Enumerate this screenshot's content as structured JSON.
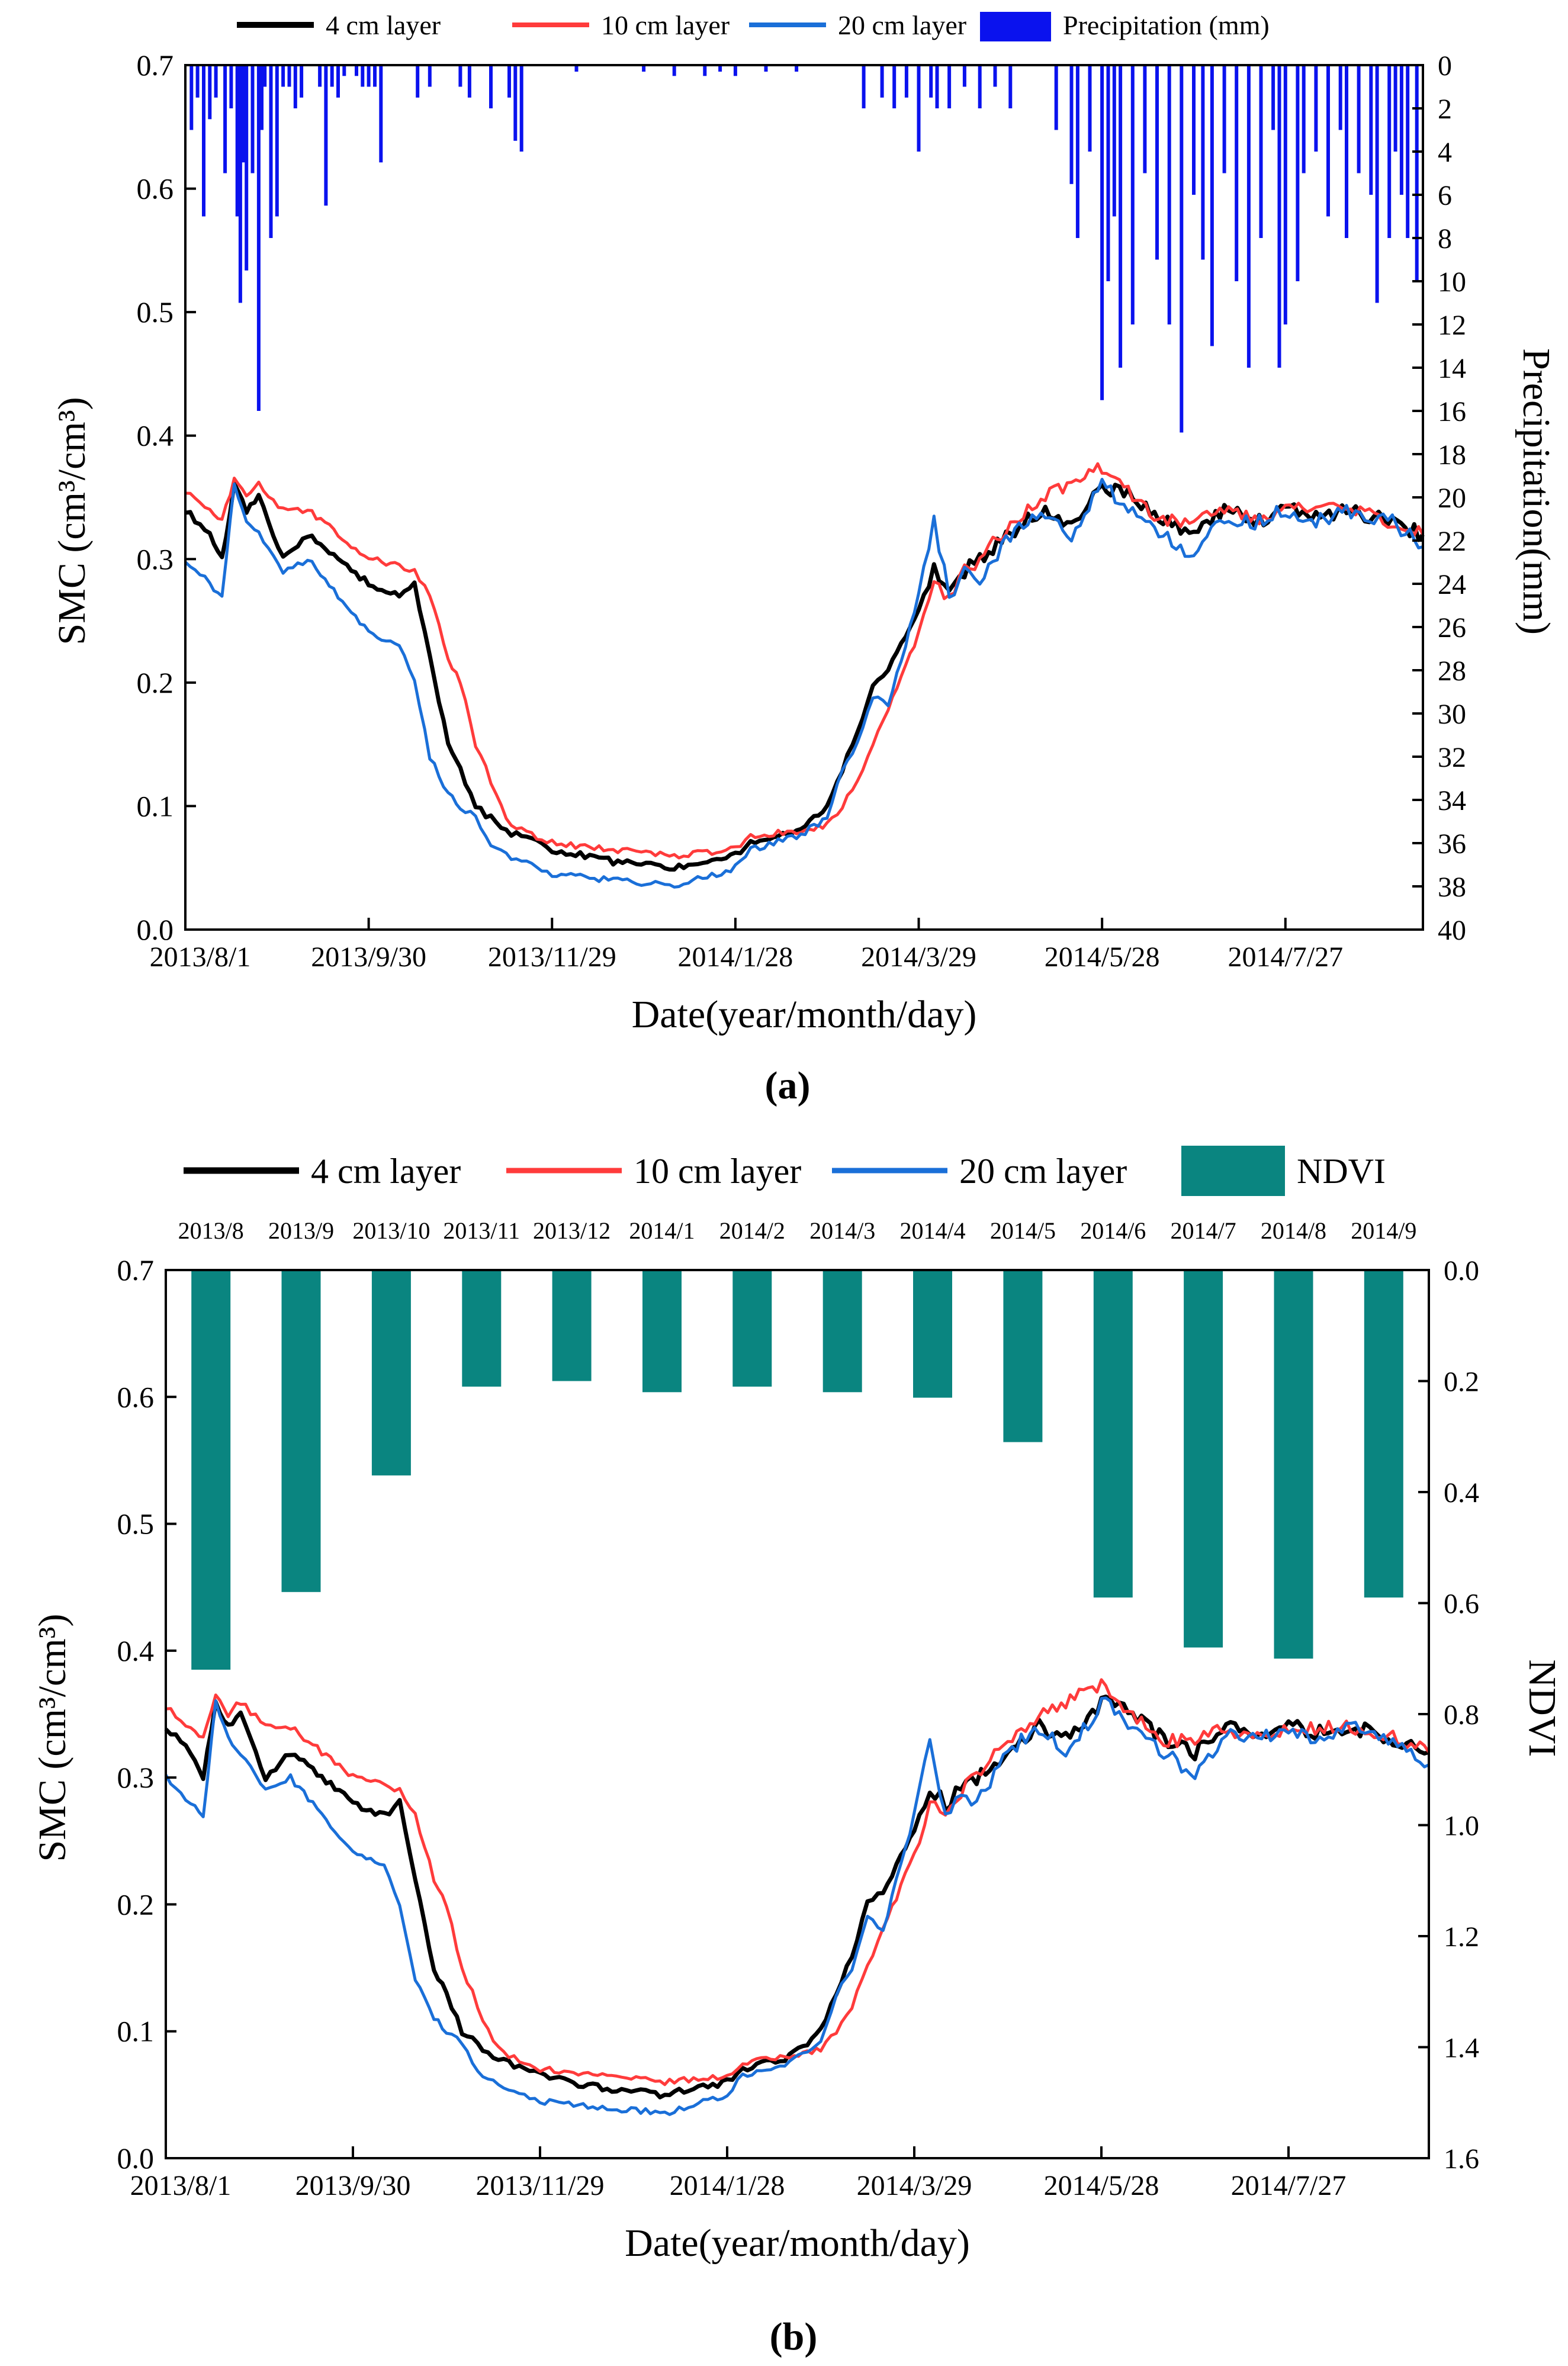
{
  "figure": {
    "panel_a_label": "(a)",
    "panel_b_label": "(b)"
  },
  "colors": {
    "layer4": "#000000",
    "layer10": "#ff3b3b",
    "layer20": "#1a6fd8",
    "precip": "#0a12ee",
    "ndvi": "#0a8580"
  },
  "chart_data": [
    {
      "type": "line",
      "panel": "a",
      "xlabel": "Date(year/month/day)",
      "ylabel": "SMC (cm³/cm³)",
      "y2label": "Precipitation(mm)",
      "ylim": [
        0.0,
        0.7
      ],
      "y2lim": [
        0,
        40
      ],
      "y2_inverted": true,
      "x_tick_labels": [
        "2013/8/1",
        "2013/9/30",
        "2013/11/29",
        "2014/1/28",
        "2014/3/29",
        "2014/5/28",
        "2014/7/27"
      ],
      "y_tick_labels": [
        "0.0",
        "0.1",
        "0.2",
        "0.3",
        "0.4",
        "0.5",
        "0.6",
        "0.7"
      ],
      "y2_tick_labels": [
        "0",
        "2",
        "4",
        "6",
        "8",
        "10",
        "12",
        "14",
        "16",
        "18",
        "20",
        "22",
        "24",
        "26",
        "28",
        "30",
        "32",
        "34",
        "36",
        "38",
        "40"
      ],
      "legend": [
        "4 cm layer",
        "10 cm layer",
        "20 cm layer",
        "Precipitation (mm)"
      ],
      "legend_position": "top",
      "x_days": [
        0,
        8,
        12,
        16,
        20,
        24,
        32,
        40,
        50,
        60,
        70,
        75,
        80,
        86,
        90,
        95,
        100,
        105,
        110,
        115,
        120,
        140,
        160,
        180,
        185,
        200,
        210,
        215,
        220,
        225,
        230,
        240,
        245,
        250,
        255,
        260,
        270,
        280,
        290,
        300,
        310,
        320,
        330,
        340,
        350,
        360,
        370,
        380,
        395,
        405
      ],
      "series": [
        {
          "name": "4 cm layer",
          "values": [
            0.34,
            0.32,
            0.3,
            0.36,
            0.34,
            0.35,
            0.3,
            0.32,
            0.3,
            0.28,
            0.27,
            0.28,
            0.22,
            0.15,
            0.13,
            0.1,
            0.09,
            0.08,
            0.075,
            0.07,
            0.065,
            0.055,
            0.05,
            0.06,
            0.07,
            0.08,
            0.1,
            0.13,
            0.16,
            0.2,
            0.21,
            0.26,
            0.29,
            0.28,
            0.29,
            0.3,
            0.32,
            0.34,
            0.33,
            0.36,
            0.35,
            0.33,
            0.32,
            0.34,
            0.33,
            0.34,
            0.335,
            0.34,
            0.33,
            0.32
          ]
        },
        {
          "name": "10 cm layer",
          "values": [
            0.355,
            0.34,
            0.33,
            0.365,
            0.35,
            0.36,
            0.34,
            0.34,
            0.32,
            0.3,
            0.295,
            0.29,
            0.27,
            0.22,
            0.2,
            0.15,
            0.12,
            0.09,
            0.08,
            0.075,
            0.07,
            0.065,
            0.06,
            0.065,
            0.075,
            0.08,
            0.085,
            0.1,
            0.12,
            0.15,
            0.18,
            0.24,
            0.28,
            0.27,
            0.29,
            0.3,
            0.33,
            0.35,
            0.36,
            0.375,
            0.35,
            0.33,
            0.33,
            0.34,
            0.33,
            0.34,
            0.34,
            0.34,
            0.33,
            0.32
          ]
        },
        {
          "name": "20 cm layer",
          "values": [
            0.3,
            0.28,
            0.27,
            0.36,
            0.33,
            0.32,
            0.29,
            0.3,
            0.27,
            0.24,
            0.23,
            0.2,
            0.14,
            0.11,
            0.1,
            0.09,
            0.07,
            0.06,
            0.055,
            0.05,
            0.045,
            0.04,
            0.035,
            0.05,
            0.065,
            0.075,
            0.09,
            0.13,
            0.15,
            0.19,
            0.18,
            0.27,
            0.33,
            0.27,
            0.29,
            0.28,
            0.32,
            0.34,
            0.32,
            0.36,
            0.34,
            0.32,
            0.3,
            0.335,
            0.33,
            0.34,
            0.33,
            0.34,
            0.33,
            0.31
          ]
        }
      ],
      "precipitation": {
        "name": "Precipitation (mm)",
        "days": [
          2,
          4,
          6,
          8,
          10,
          13,
          15,
          17,
          18,
          19,
          20,
          22,
          24,
          25,
          26,
          28,
          30,
          32,
          34,
          36,
          38,
          44,
          46,
          48,
          50,
          52,
          56,
          58,
          60,
          62,
          64,
          76,
          80,
          90,
          93,
          100,
          106,
          108,
          110,
          128,
          150,
          160,
          170,
          175,
          180,
          190,
          200,
          222,
          228,
          232,
          236,
          240,
          244,
          246,
          250,
          255,
          260,
          265,
          270,
          285,
          290,
          292,
          296,
          300,
          302,
          304,
          306,
          310,
          314,
          318,
          322,
          326,
          330,
          333,
          336,
          340,
          344,
          348,
          352,
          356,
          358,
          360,
          364,
          366,
          370,
          374,
          378,
          380,
          384,
          388,
          390,
          394,
          396,
          398,
          400,
          403
        ],
        "values": [
          3,
          1.5,
          7,
          2.5,
          1.5,
          5,
          2,
          7,
          11,
          4.5,
          9.5,
          5,
          16,
          3,
          1,
          8,
          7,
          1,
          1,
          2,
          1.5,
          1,
          6.5,
          1,
          1.5,
          0.5,
          0.5,
          1,
          1,
          1,
          4.5,
          1.5,
          1,
          1,
          1.5,
          2,
          1.5,
          3.5,
          4,
          0.3,
          0.3,
          0.5,
          0.5,
          0.3,
          0.5,
          0.3,
          0.3,
          2,
          1.5,
          2,
          1.5,
          4,
          1.5,
          2,
          2,
          1,
          2,
          1,
          2,
          3,
          5.5,
          8,
          4,
          15.5,
          10,
          7,
          14,
          12,
          5,
          9,
          12,
          17,
          6,
          9,
          13,
          5,
          10,
          14,
          8,
          3,
          14,
          12,
          10,
          5,
          4,
          7,
          3,
          8,
          5,
          6,
          11,
          8,
          4,
          6,
          8,
          10
        ]
      }
    },
    {
      "type": "bar",
      "panel": "b",
      "xlabel": "Date(year/month/day)",
      "ylabel": "SMC (cm³/cm³)",
      "y2label": "NDVI",
      "ylim": [
        0.0,
        0.7
      ],
      "y2lim": [
        0.0,
        1.6
      ],
      "y2_inverted": true,
      "x_tick_labels": [
        "2013/8/1",
        "2013/9/30",
        "2013/11/29",
        "2014/1/28",
        "2014/3/29",
        "2014/5/28",
        "2014/7/27"
      ],
      "y_tick_labels": [
        "0.0",
        "0.1",
        "0.2",
        "0.3",
        "0.4",
        "0.5",
        "0.6",
        "0.7"
      ],
      "y2_tick_labels": [
        "0.0",
        "0.2",
        "0.4",
        "0.6",
        "0.8",
        "1.0",
        "1.2",
        "1.4",
        "1.6"
      ],
      "legend": [
        "4 cm layer",
        "10 cm layer",
        "20 cm layer",
        "NDVI"
      ],
      "legend_position": "top",
      "categories": [
        "2013/8",
        "2013/9",
        "2013/10",
        "2013/11",
        "2013/12",
        "2014/1",
        "2014/2",
        "2014/3",
        "2014/4",
        "2014/5",
        "2014/6",
        "2014/7",
        "2014/8",
        "2014/9"
      ],
      "ndvi_values": [
        0.72,
        0.58,
        0.37,
        0.21,
        0.2,
        0.22,
        0.21,
        0.22,
        0.23,
        0.31,
        0.59,
        0.68,
        0.7,
        0.59
      ],
      "note_lines_same_as_panel_a": true
    }
  ]
}
